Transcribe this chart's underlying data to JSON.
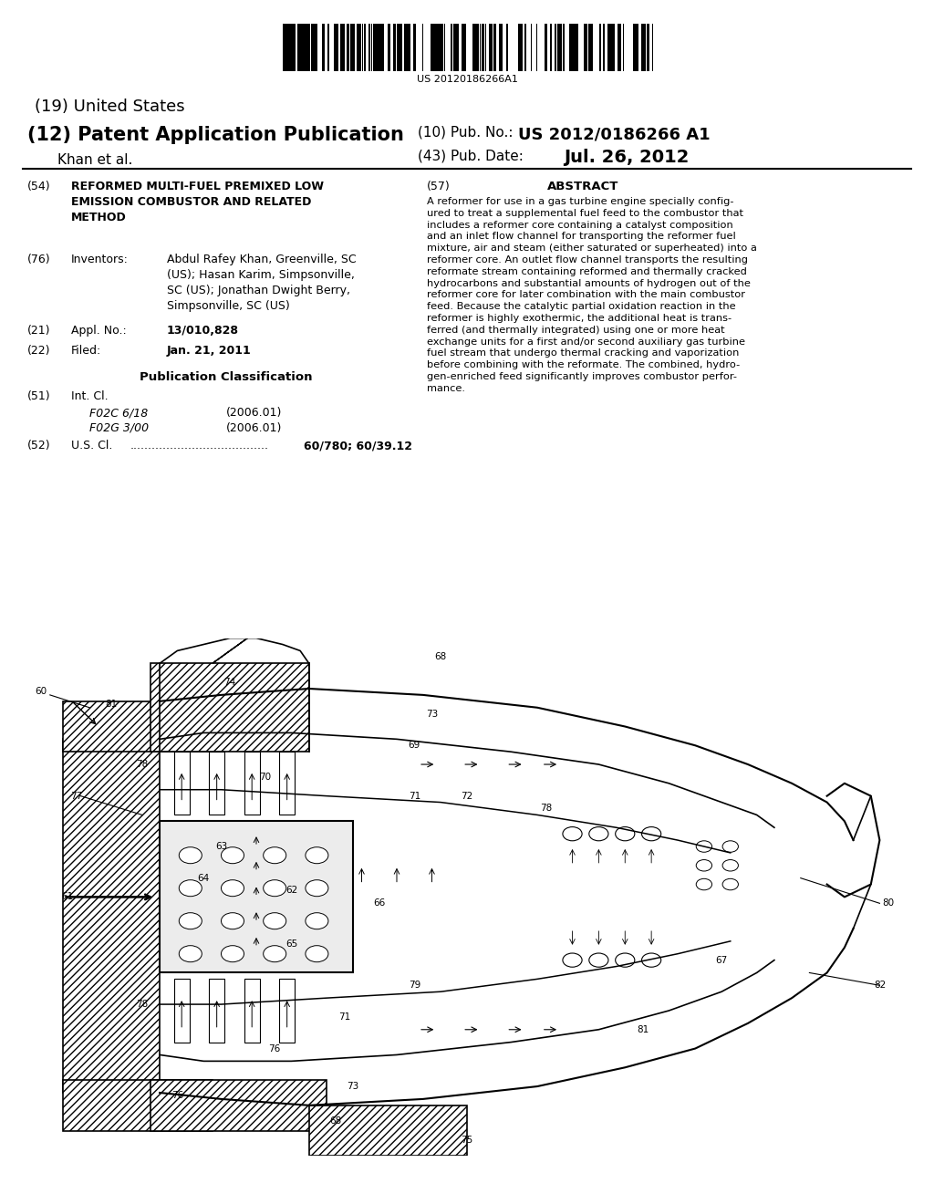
{
  "bg_color": "#ffffff",
  "barcode_text": "US 20120186266A1",
  "header_left_line1": "(19) United States",
  "header_left_line2": "(12) Patent Application Publication",
  "header_left_line3": "Khan et al.",
  "header_right_pub_label": "(10) Pub. No.:",
  "header_right_pub_value": "US 2012/0186266 A1",
  "header_right_date_label": "(43) Pub. Date:",
  "header_right_date_value": "Jul. 26, 2012",
  "field54_label": "(54)",
  "field54_title": "REFORMED MULTI-FUEL PREMIXED LOW\nEMISSION COMBUSTOR AND RELATED\nMETHOD",
  "field57_label": "(57)",
  "field57_header": "ABSTRACT",
  "abstract_text": "A reformer for use in a gas turbine engine specially config-\nured to treat a supplemental fuel feed to the combustor that\nincludes a reformer core containing a catalyst composition\nand an inlet flow channel for transporting the reformer fuel\nmixture, air and steam (either saturated or superheated) into a\nreformer core. An outlet flow channel transports the resulting\nreformate stream containing reformed and thermally cracked\nhydrocarbons and substantial amounts of hydrogen out of the\nreformer core for later combination with the main combustor\nfeed. Because the catalytic partial oxidation reaction in the\nreformer is highly exothermic, the additional heat is trans-\nferred (and thermally integrated) using one or more heat\nexchange units for a first and/or second auxiliary gas turbine\nfuel stream that undergo thermal cracking and vaporization\nbefore combining with the reformate. The combined, hydro-\ngen-enriched feed significantly improves combustor perfor-\nmance.",
  "field76_label": "(76)",
  "field76_header": "Inventors:",
  "field76_text": "Abdul Rafey Khan, Greenville, SC\n(US); Hasan Karim, Simpsonville,\nSC (US); Jonathan Dwight Berry,\nSimpsonville, SC (US)",
  "field21_label": "(21)",
  "field21_header": "Appl. No.:",
  "field21_value": "13/010,828",
  "field22_label": "(22)",
  "field22_header": "Filed:",
  "field22_value": "Jan. 21, 2011",
  "pub_class_header": "Publication Classification",
  "field51_label": "(51)",
  "field51_header": "Int. Cl.",
  "field51_class1": "F02C 6/18",
  "field51_date1": "(2006.01)",
  "field51_class2": "F02G 3/00",
  "field51_date2": "(2006.01)",
  "field52_label": "(52)",
  "field52_header": "U.S. Cl.",
  "field52_dots": "......................................",
  "field52_value": "60/780; 60/39.12"
}
